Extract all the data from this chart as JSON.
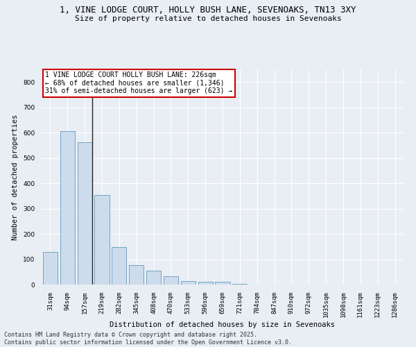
{
  "title_line1": "1, VINE LODGE COURT, HOLLY BUSH LANE, SEVENOAKS, TN13 3XY",
  "title_line2": "Size of property relative to detached houses in Sevenoaks",
  "xlabel": "Distribution of detached houses by size in Sevenoaks",
  "ylabel": "Number of detached properties",
  "categories": [
    "31sqm",
    "94sqm",
    "157sqm",
    "219sqm",
    "282sqm",
    "345sqm",
    "408sqm",
    "470sqm",
    "533sqm",
    "596sqm",
    "659sqm",
    "721sqm",
    "784sqm",
    "847sqm",
    "910sqm",
    "972sqm",
    "1035sqm",
    "1098sqm",
    "1161sqm",
    "1223sqm",
    "1286sqm"
  ],
  "values": [
    128,
    607,
    562,
    355,
    148,
    77,
    54,
    34,
    13,
    11,
    11,
    4,
    0,
    0,
    0,
    0,
    0,
    0,
    0,
    0,
    0
  ],
  "bar_color": "#ccdcec",
  "bar_edge_color": "#6699bb",
  "vline_x": 2.45,
  "vline_color": "#222222",
  "annotation_text": "1 VINE LODGE COURT HOLLY BUSH LANE: 226sqm\n← 68% of detached houses are smaller (1,346)\n31% of semi-detached houses are larger (623) →",
  "annotation_box_facecolor": "#ffffff",
  "annotation_box_edgecolor": "#cc0000",
  "background_color": "#e8eef4",
  "grid_color": "#ffffff",
  "ylim": [
    0,
    850
  ],
  "yticks": [
    0,
    100,
    200,
    300,
    400,
    500,
    600,
    700,
    800
  ],
  "title_fontsize": 9,
  "subtitle_fontsize": 8,
  "axis_label_fontsize": 7.5,
  "tick_fontsize": 6.5,
  "annotation_fontsize": 7,
  "footer_fontsize": 6
}
